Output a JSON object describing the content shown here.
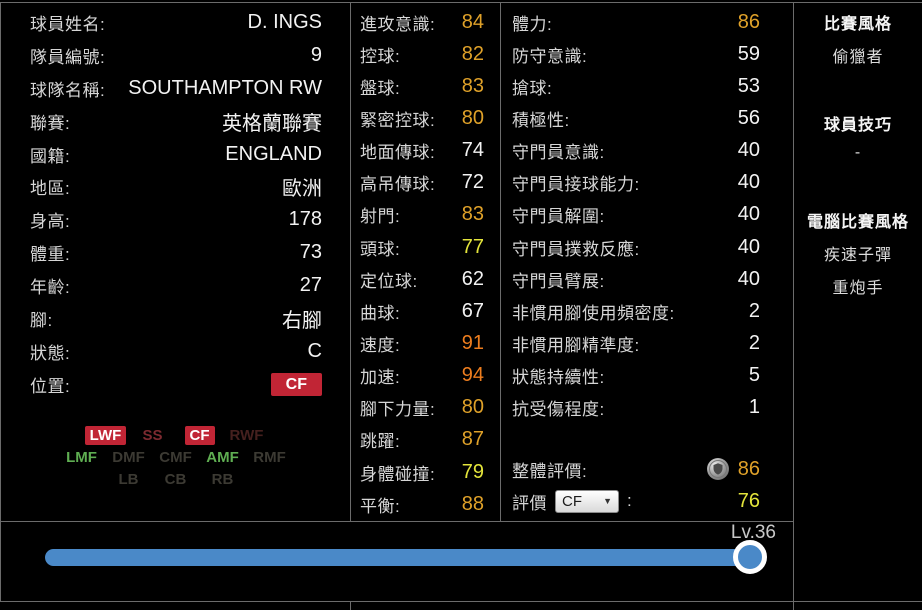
{
  "colors": {
    "accent_red": "#c12535",
    "tier_gold": "#dfa129",
    "tier_orange": "#ed7d1e",
    "tier_yellow": "#e3e43b",
    "tier_white": "#f2f2f2",
    "position_green": "#5fae52",
    "slider_blue": "#4a89c8"
  },
  "left": {
    "rows": [
      {
        "label": "球員姓名:",
        "value": "D. INGS"
      },
      {
        "label": "隊員編號:",
        "value": "9"
      },
      {
        "label": "球隊名稱:",
        "value": "SOUTHAMPTON RW"
      },
      {
        "label": "聯賽:",
        "value": "英格蘭聯賽"
      },
      {
        "label": "國籍:",
        "value": "ENGLAND"
      },
      {
        "label": "地區:",
        "value": "歐洲"
      },
      {
        "label": "身高:",
        "value": "178"
      },
      {
        "label": "體重:",
        "value": "73"
      },
      {
        "label": "年齡:",
        "value": "27"
      },
      {
        "label": "腳:",
        "value": "右腳"
      },
      {
        "label": "狀態:",
        "value": "C"
      }
    ],
    "position_row": {
      "label": "位置:",
      "badge": "CF"
    },
    "grid": {
      "row1": [
        {
          "t": "LWF",
          "cls": "pos-on"
        },
        {
          "t": "SS",
          "cls": "pos-ss"
        },
        {
          "t": "CF",
          "cls": "pos-on"
        },
        {
          "t": "RWF",
          "cls": "pos-rwf"
        }
      ],
      "row2": [
        {
          "t": "LMF",
          "cls": "pos-green"
        },
        {
          "t": "DMF",
          "cls": "pos-dim"
        },
        {
          "t": "CMF",
          "cls": "pos-dim"
        },
        {
          "t": "AMF",
          "cls": "pos-green"
        },
        {
          "t": "RMF",
          "cls": "pos-dim"
        }
      ],
      "row3": [
        {
          "t": "LB",
          "cls": "pos-dim"
        },
        {
          "t": "CB",
          "cls": "pos-dim"
        },
        {
          "t": "RB",
          "cls": "pos-dim"
        }
      ]
    }
  },
  "mid": {
    "stats": [
      {
        "label": "進攻意識:",
        "value": "84",
        "cls": "gold"
      },
      {
        "label": "控球:",
        "value": "82",
        "cls": "gold"
      },
      {
        "label": "盤球:",
        "value": "83",
        "cls": "gold"
      },
      {
        "label": "緊密控球:",
        "value": "80",
        "cls": "gold"
      },
      {
        "label": "地面傳球:",
        "value": "74",
        "cls": "white"
      },
      {
        "label": "高吊傳球:",
        "value": "72",
        "cls": "white"
      },
      {
        "label": "射門:",
        "value": "83",
        "cls": "gold"
      },
      {
        "label": "頭球:",
        "value": "77",
        "cls": "yellow"
      },
      {
        "label": "定位球:",
        "value": "62",
        "cls": "white"
      },
      {
        "label": "曲球:",
        "value": "67",
        "cls": "white"
      },
      {
        "label": "速度:",
        "value": "91",
        "cls": "orange"
      },
      {
        "label": "加速:",
        "value": "94",
        "cls": "orange"
      },
      {
        "label": "腳下力量:",
        "value": "80",
        "cls": "gold"
      },
      {
        "label": "跳躍:",
        "value": "87",
        "cls": "gold"
      },
      {
        "label": "身體碰撞:",
        "value": "79",
        "cls": "yellow"
      },
      {
        "label": "平衡:",
        "value": "88",
        "cls": "gold"
      }
    ]
  },
  "right": {
    "stats": [
      {
        "label": "體力:",
        "value": "86",
        "cls": "gold"
      },
      {
        "label": "防守意識:",
        "value": "59",
        "cls": "white"
      },
      {
        "label": "搶球:",
        "value": "53",
        "cls": "white"
      },
      {
        "label": "積極性:",
        "value": "56",
        "cls": "white"
      },
      {
        "label": "守門員意識:",
        "value": "40",
        "cls": "white"
      },
      {
        "label": "守門員接球能力:",
        "value": "40",
        "cls": "white"
      },
      {
        "label": "守門員解圍:",
        "value": "40",
        "cls": "white"
      },
      {
        "label": "守門員撲救反應:",
        "value": "40",
        "cls": "white"
      },
      {
        "label": "守門員臂展:",
        "value": "40",
        "cls": "white"
      },
      {
        "label": "非慣用腳使用頻密度:",
        "value": "2",
        "cls": "white"
      },
      {
        "label": "非慣用腳精準度:",
        "value": "2",
        "cls": "white"
      },
      {
        "label": "狀態持續性:",
        "value": "5",
        "cls": "white"
      },
      {
        "label": "抗受傷程度:",
        "value": "1",
        "cls": "white"
      }
    ],
    "overall": {
      "label": "整體評價:",
      "value": "86",
      "cls": "gold",
      "icon": "shield-badge"
    },
    "rating": {
      "label": "評價",
      "select_value": "CF",
      "colon": ":",
      "value": "76",
      "cls": "yellow"
    }
  },
  "styles_panel": {
    "sections": [
      {
        "title": "比賽風格",
        "items": [
          "偷獵者"
        ]
      },
      {
        "title": "球員技巧",
        "items": [
          "-"
        ]
      },
      {
        "title": "電腦比賽風格",
        "items": [
          "疾速子彈",
          "重炮手"
        ]
      }
    ]
  },
  "level": {
    "label": "Lv.36",
    "progress_pct": 94
  }
}
